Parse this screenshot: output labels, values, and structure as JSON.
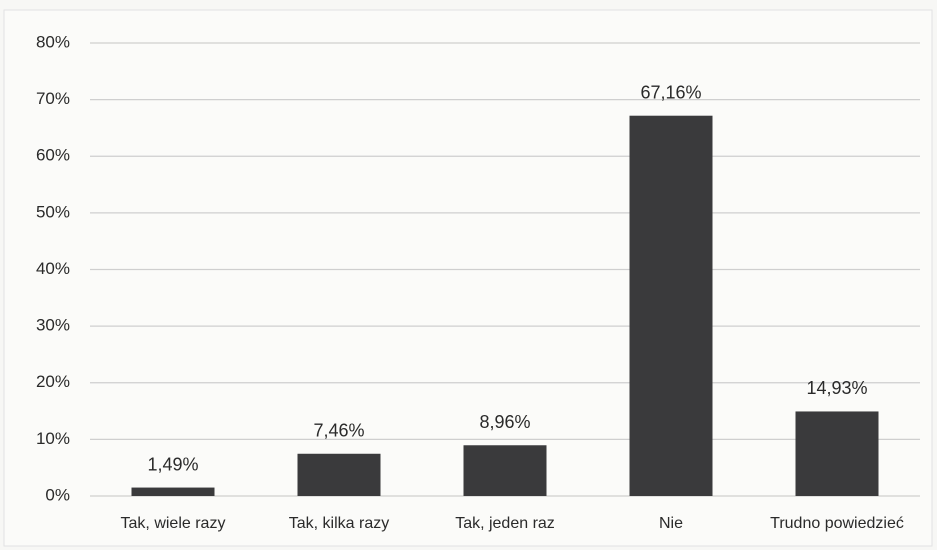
{
  "chart_data": {
    "type": "bar",
    "categories": [
      "Tak, wiele razy",
      "Tak, kilka razy",
      "Tak, jeden raz",
      "Nie",
      "Trudno powiedzieć"
    ],
    "values": [
      1.49,
      7.46,
      8.96,
      67.16,
      14.93
    ],
    "value_labels": [
      "1,49%",
      "7,46%",
      "8,96%",
      "67,16%",
      "14,93%"
    ],
    "color": "#3a3a3c",
    "ylim": [
      0,
      80
    ],
    "yticks": [
      {
        "value": 0,
        "label": "0%"
      },
      {
        "value": 10,
        "label": "10%"
      },
      {
        "value": 20,
        "label": "20%"
      },
      {
        "value": 30,
        "label": "30%"
      },
      {
        "value": 40,
        "label": "40%"
      },
      {
        "value": 50,
        "label": "50%"
      },
      {
        "value": 60,
        "label": "60%"
      },
      {
        "value": 70,
        "label": "70%"
      },
      {
        "value": 80,
        "label": "80%"
      }
    ],
    "grid": true
  }
}
